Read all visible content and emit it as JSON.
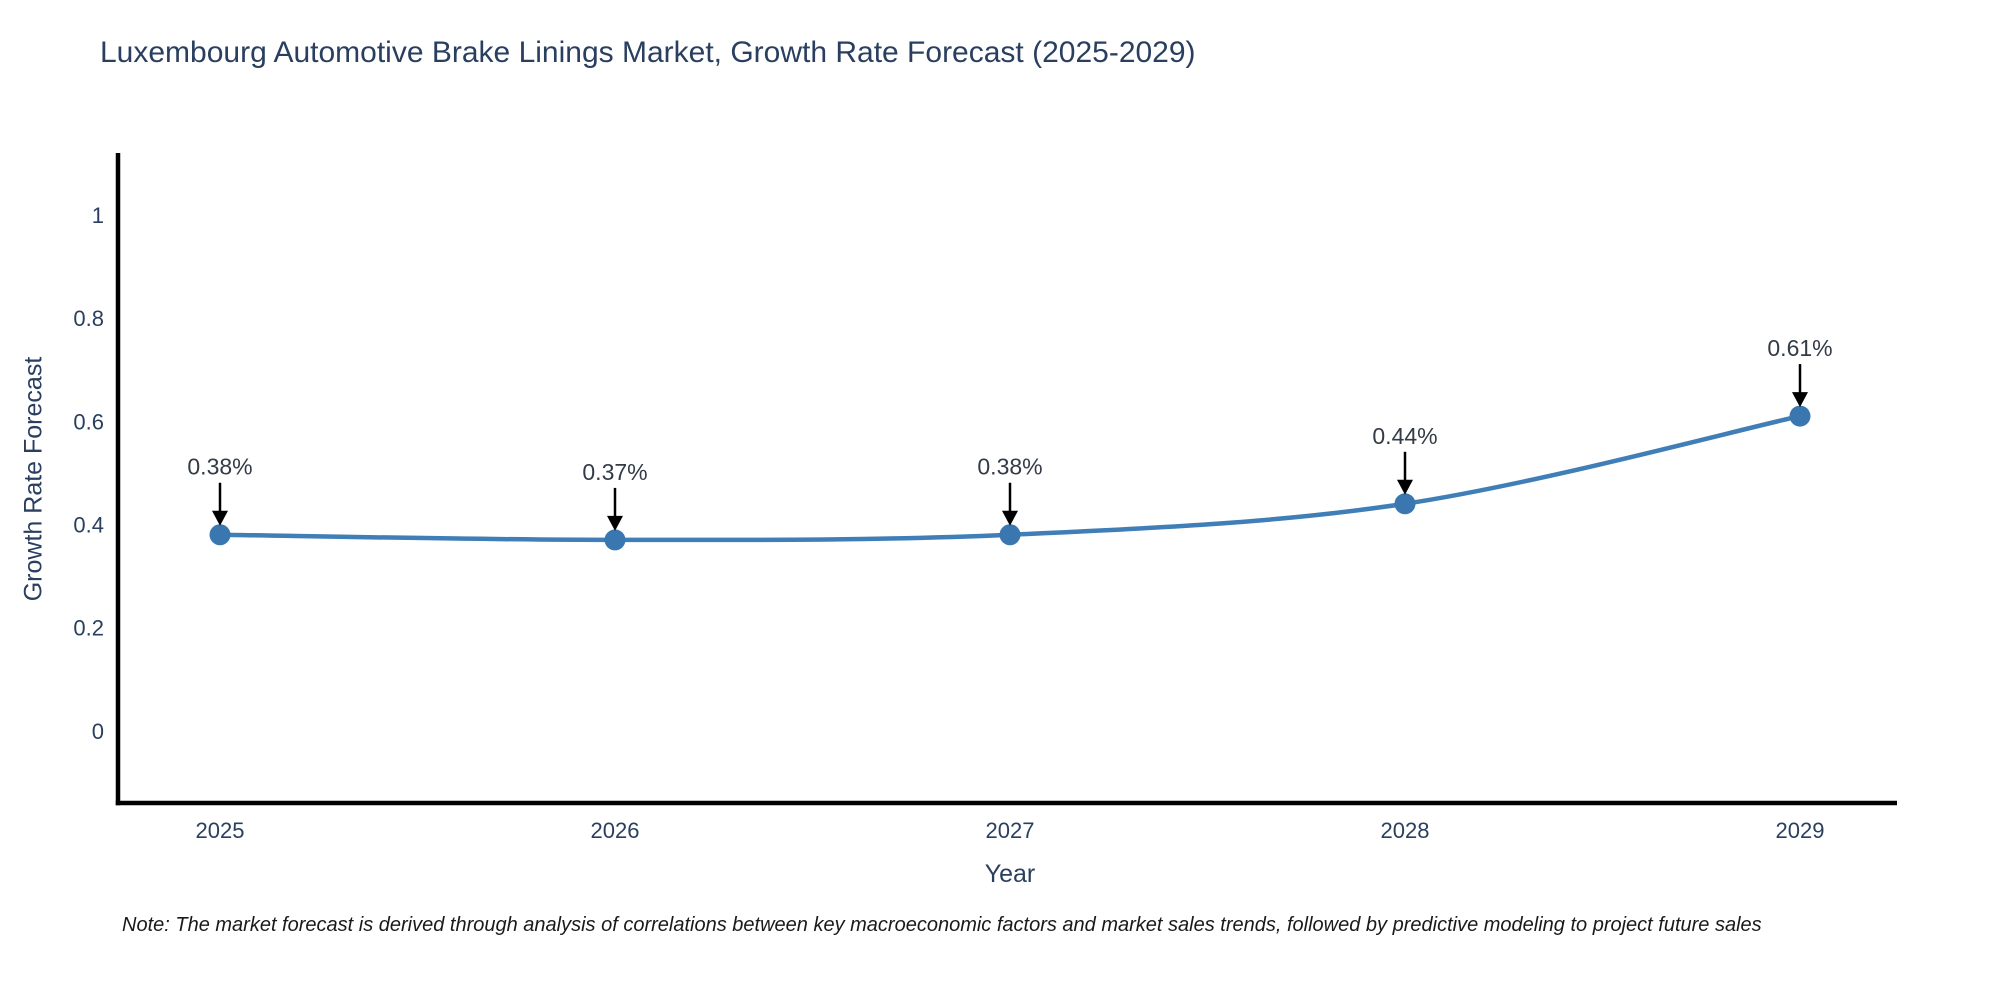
{
  "header": {
    "title": "Luxembourg Automotive Brake Linings Market, Growth Rate Forecast (2025-2029)"
  },
  "chart_data": {
    "type": "line",
    "title": "Luxembourg Automotive Brake Linings Market, Growth Rate Forecast (2025-2029)",
    "x": [
      "2025",
      "2026",
      "2027",
      "2028",
      "2029"
    ],
    "series": [
      {
        "name": "Growth Rate Forecast",
        "values": [
          0.38,
          0.37,
          0.38,
          0.44,
          0.61
        ],
        "point_labels": [
          "0.38%",
          "0.37%",
          "0.38%",
          "0.44%",
          "0.61%"
        ]
      }
    ],
    "xlabel": "Year",
    "ylabel": "Growth Rate Forecast",
    "yticks": [
      0,
      0.2,
      0.4,
      0.6,
      0.8,
      1
    ],
    "ytick_labels": [
      "0",
      "0.2",
      "0.4",
      "0.6",
      "0.8",
      "1"
    ],
    "ylim": [
      -0.14,
      1.12
    ],
    "grid": false,
    "legend": "none",
    "line_shape": "spline",
    "annotations_have_arrows": true,
    "colors": {
      "line": "#3f7eb6",
      "marker": "#3a77b0",
      "axis_line": "#000000",
      "tick_text": "#2a3f5f",
      "annotation_text": "#333b46",
      "arrow": "#000000",
      "title_text": "#2a3f5f"
    }
  },
  "footnote": {
    "text": "Note: The market forecast is derived through analysis of correlations between key macroeconomic factors and market sales trends, followed by predictive modeling to project future sales"
  }
}
